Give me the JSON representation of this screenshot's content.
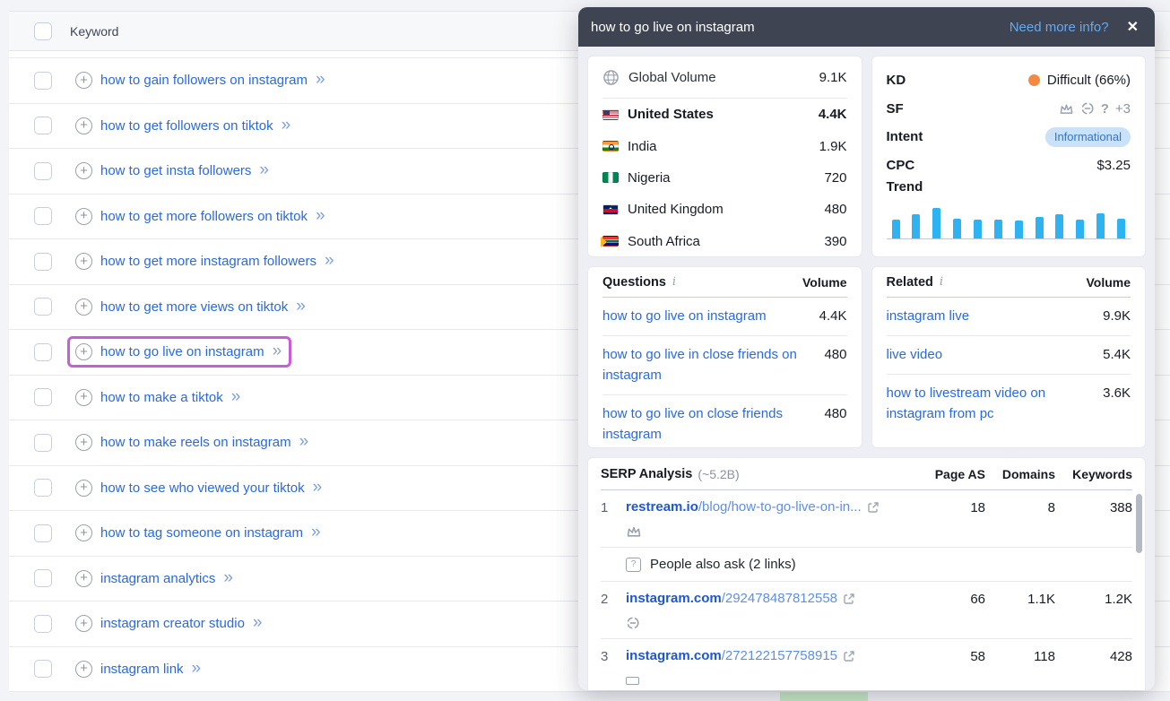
{
  "keywords_table": {
    "header_label": "Keyword",
    "rows": [
      {
        "label": "how to gain followers on instagram"
      },
      {
        "label": "how to get followers on tiktok"
      },
      {
        "label": "how to get insta followers"
      },
      {
        "label": "how to get more followers on tiktok"
      },
      {
        "label": "how to get more instagram followers"
      },
      {
        "label": "how to get more views on tiktok"
      },
      {
        "label": "how to go live on instagram",
        "state": "selected"
      },
      {
        "label": "how to make a tiktok"
      },
      {
        "label": "how to make reels on instagram"
      },
      {
        "label": "how to see who viewed your tiktok"
      },
      {
        "label": "how to tag someone on instagram"
      },
      {
        "label": "instagram analytics"
      },
      {
        "label": "instagram creator studio"
      },
      {
        "label": "instagram link"
      }
    ],
    "arrows": "»"
  },
  "popup": {
    "title": "how to go live on instagram",
    "need_more_info": "Need more info?",
    "close": "✕",
    "volume_card": {
      "global_label": "Global Volume",
      "global_value": "9.1K",
      "countries": [
        {
          "name": "United States",
          "value": "4.4K",
          "flag": "flag-us",
          "emph": "top"
        },
        {
          "name": "India",
          "value": "1.9K",
          "flag": "flag-in"
        },
        {
          "name": "Nigeria",
          "value": "720",
          "flag": "flag-ng"
        },
        {
          "name": "United Kingdom",
          "value": "480",
          "flag": "flag-gb"
        },
        {
          "name": "South Africa",
          "value": "390",
          "flag": "flag-za"
        }
      ]
    },
    "metrics_card": {
      "kd_label": "KD",
      "kd_value": "Difficult (66%)",
      "kd_dot_color": "#f5893f",
      "sf_label": "SF",
      "sf_extra": "+3",
      "intent_label": "Intent",
      "intent_value": "Informational",
      "intent_badge_bg": "#c9e1f9",
      "intent_badge_text": "#3576c4",
      "cpc_label": "CPC",
      "cpc_value": "$3.25",
      "trend_label": "Trend",
      "trend_bar_color": "#2db3f2"
    },
    "questions_card": {
      "title": "Questions",
      "volume_label": "Volume",
      "rows": [
        {
          "text": "how to go live on instagram",
          "volume": "4.4K"
        },
        {
          "text": "how to go live in close friends on instagram",
          "volume": "480"
        },
        {
          "text": "how to go live on close friends instagram",
          "volume": "480"
        }
      ]
    },
    "related_card": {
      "title": "Related",
      "volume_label": "Volume",
      "rows": [
        {
          "text": "instagram live",
          "volume": "9.9K"
        },
        {
          "text": "live video",
          "volume": "5.4K"
        },
        {
          "text": "how to livestream video on instagram from pc",
          "volume": "3.6K"
        }
      ]
    },
    "serp_card": {
      "title": "SERP Analysis",
      "subtitle": "(~5.2B)",
      "columns": [
        "Page AS",
        "Domains",
        "Keywords"
      ],
      "rows": [
        {
          "rank": "1",
          "domain": "restream.io",
          "path": "/blog/how-to-go-live-on-in...",
          "page_as": "18",
          "domains": "8",
          "keywords": "388",
          "icon_crown": true,
          "paa": "People also ask (2 links)"
        },
        {
          "rank": "2",
          "domain": "instagram.com",
          "path": "/292478487812558",
          "page_as": "66",
          "domains": "1.1K",
          "keywords": "1.2K",
          "icon_link": true
        },
        {
          "rank": "3",
          "domain": "instagram.com",
          "path": "/272122157758915",
          "page_as": "58",
          "domains": "118",
          "keywords": "428",
          "icon_rect": true
        }
      ]
    }
  },
  "chart_data": {
    "type": "bar",
    "title": "Trend",
    "values": [
      0.62,
      0.8,
      1.0,
      0.65,
      0.62,
      0.62,
      0.6,
      0.72,
      0.8,
      0.63,
      0.82,
      0.66
    ],
    "ylim": [
      0,
      1
    ],
    "grid": false
  }
}
